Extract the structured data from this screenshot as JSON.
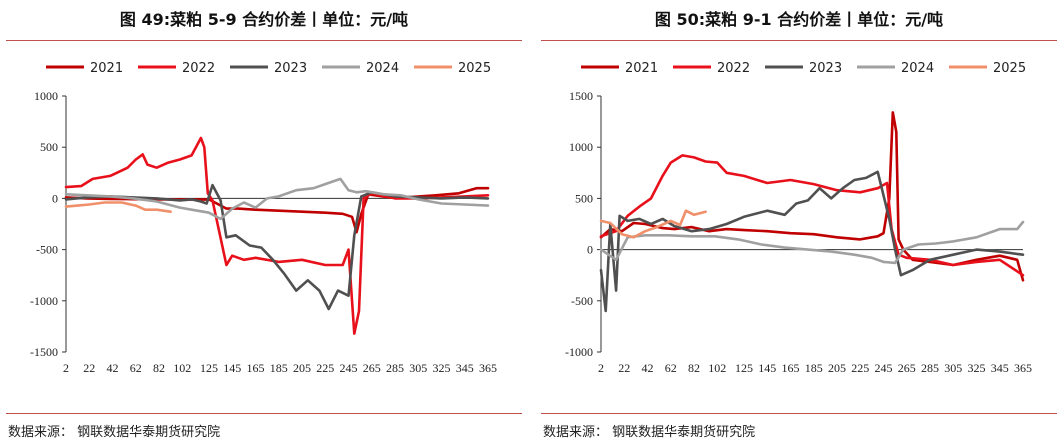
{
  "chart_data": [
    {
      "type": "line",
      "title": "图 49:菜粕 5-9 合约价差丨单位：元/吨",
      "xlabel": "",
      "ylabel": "",
      "xlim": [
        2,
        365
      ],
      "ylim": [
        -1500,
        1000
      ],
      "x_ticks": [
        2,
        22,
        42,
        62,
        82,
        102,
        125,
        145,
        165,
        185,
        205,
        225,
        245,
        265,
        285,
        305,
        325,
        345,
        365
      ],
      "y_ticks": [
        1000,
        500,
        0,
        -500,
        -1000,
        -1500
      ],
      "legend": "top",
      "series": [
        {
          "name": "2021",
          "color": "#c00000",
          "points": [
            [
              2,
              10
            ],
            [
              20,
              0
            ],
            [
              40,
              -5
            ],
            [
              60,
              -8
            ],
            [
              80,
              -10
            ],
            [
              100,
              -10
            ],
            [
              115,
              -12
            ],
            [
              125,
              -10
            ],
            [
              140,
              -100
            ],
            [
              150,
              -100
            ],
            [
              165,
              -110
            ],
            [
              185,
              -120
            ],
            [
              205,
              -130
            ],
            [
              225,
              -140
            ],
            [
              240,
              -150
            ],
            [
              248,
              -180
            ],
            [
              252,
              -330
            ],
            [
              256,
              -150
            ],
            [
              262,
              40
            ],
            [
              280,
              10
            ],
            [
              300,
              15
            ],
            [
              320,
              30
            ],
            [
              340,
              50
            ],
            [
              355,
              100
            ],
            [
              365,
              100
            ]
          ]
        },
        {
          "name": "2022",
          "color": "#e8101a",
          "points": [
            [
              2,
              110
            ],
            [
              15,
              120
            ],
            [
              25,
              190
            ],
            [
              40,
              220
            ],
            [
              55,
              300
            ],
            [
              62,
              380
            ],
            [
              68,
              430
            ],
            [
              72,
              330
            ],
            [
              80,
              300
            ],
            [
              90,
              350
            ],
            [
              100,
              380
            ],
            [
              110,
              420
            ],
            [
              118,
              590
            ],
            [
              121,
              500
            ],
            [
              124,
              50
            ],
            [
              128,
              -20
            ],
            [
              140,
              -650
            ],
            [
              145,
              -560
            ],
            [
              155,
              -600
            ],
            [
              165,
              -580
            ],
            [
              185,
              -620
            ],
            [
              205,
              -600
            ],
            [
              225,
              -650
            ],
            [
              240,
              -650
            ],
            [
              245,
              -500
            ],
            [
              250,
              -1320
            ],
            [
              254,
              -1100
            ],
            [
              258,
              0
            ],
            [
              265,
              50
            ],
            [
              285,
              0
            ],
            [
              305,
              0
            ],
            [
              325,
              10
            ],
            [
              345,
              20
            ],
            [
              365,
              30
            ]
          ]
        },
        {
          "name": "2023",
          "color": "#505050",
          "points": [
            [
              2,
              -10
            ],
            [
              20,
              10
            ],
            [
              40,
              20
            ],
            [
              60,
              10
            ],
            [
              80,
              0
            ],
            [
              100,
              -20
            ],
            [
              110,
              -10
            ],
            [
              118,
              -30
            ],
            [
              123,
              -50
            ],
            [
              128,
              130
            ],
            [
              135,
              -20
            ],
            [
              140,
              -380
            ],
            [
              148,
              -360
            ],
            [
              160,
              -460
            ],
            [
              170,
              -480
            ],
            [
              180,
              -600
            ],
            [
              190,
              -740
            ],
            [
              200,
              -900
            ],
            [
              210,
              -800
            ],
            [
              220,
              -900
            ],
            [
              228,
              -1080
            ],
            [
              236,
              -900
            ],
            [
              245,
              -950
            ],
            [
              250,
              -360
            ],
            [
              256,
              20
            ],
            [
              265,
              60
            ],
            [
              285,
              20
            ],
            [
              305,
              10
            ],
            [
              325,
              0
            ],
            [
              345,
              10
            ],
            [
              365,
              0
            ]
          ]
        },
        {
          "name": "2024",
          "color": "#a0a0a0",
          "points": [
            [
              2,
              40
            ],
            [
              20,
              30
            ],
            [
              40,
              20
            ],
            [
              60,
              0
            ],
            [
              80,
              -30
            ],
            [
              100,
              -90
            ],
            [
              115,
              -120
            ],
            [
              125,
              -140
            ],
            [
              135,
              -200
            ],
            [
              145,
              -100
            ],
            [
              155,
              -40
            ],
            [
              165,
              -90
            ],
            [
              175,
              0
            ],
            [
              185,
              20
            ],
            [
              200,
              80
            ],
            [
              215,
              100
            ],
            [
              225,
              140
            ],
            [
              238,
              190
            ],
            [
              245,
              80
            ],
            [
              252,
              60
            ],
            [
              260,
              70
            ],
            [
              275,
              40
            ],
            [
              290,
              30
            ],
            [
              305,
              -10
            ],
            [
              325,
              -50
            ],
            [
              345,
              -60
            ],
            [
              365,
              -70
            ]
          ]
        },
        {
          "name": "2025",
          "color": "#f0906a",
          "points": [
            [
              2,
              -80
            ],
            [
              12,
              -70
            ],
            [
              22,
              -60
            ],
            [
              35,
              -40
            ],
            [
              50,
              -40
            ],
            [
              62,
              -70
            ],
            [
              70,
              -110
            ],
            [
              80,
              -110
            ],
            [
              92,
              -130
            ]
          ]
        }
      ]
    },
    {
      "type": "line",
      "title": "图 50:菜粕 9-1 合约价差丨单位：元/吨",
      "xlabel": "",
      "ylabel": "",
      "xlim": [
        2,
        365
      ],
      "ylim": [
        -1000,
        1500
      ],
      "x_ticks": [
        2,
        22,
        42,
        62,
        82,
        102,
        125,
        145,
        165,
        185,
        205,
        225,
        245,
        265,
        285,
        305,
        325,
        345,
        365
      ],
      "y_ticks": [
        1500,
        1000,
        500,
        0,
        -500,
        -1000
      ],
      "legend": "top",
      "series": [
        {
          "name": "2021",
          "color": "#c00000",
          "points": [
            [
              2,
              120
            ],
            [
              10,
              200
            ],
            [
              20,
              180
            ],
            [
              30,
              260
            ],
            [
              40,
              250
            ],
            [
              55,
              210
            ],
            [
              65,
              200
            ],
            [
              80,
              220
            ],
            [
              95,
              180
            ],
            [
              110,
              200
            ],
            [
              125,
              190
            ],
            [
              145,
              180
            ],
            [
              165,
              160
            ],
            [
              185,
              150
            ],
            [
              205,
              120
            ],
            [
              225,
              100
            ],
            [
              235,
              120
            ],
            [
              240,
              130
            ],
            [
              245,
              160
            ],
            [
              250,
              500
            ],
            [
              253,
              1340
            ],
            [
              256,
              1150
            ],
            [
              258,
              100
            ],
            [
              262,
              0
            ],
            [
              270,
              -100
            ],
            [
              285,
              -120
            ],
            [
              305,
              -150
            ],
            [
              325,
              -100
            ],
            [
              345,
              -60
            ],
            [
              360,
              -100
            ],
            [
              365,
              -300
            ]
          ]
        },
        {
          "name": "2022",
          "color": "#e8101a",
          "points": [
            [
              2,
              130
            ],
            [
              15,
              180
            ],
            [
              25,
              330
            ],
            [
              35,
              420
            ],
            [
              45,
              500
            ],
            [
              55,
              720
            ],
            [
              62,
              850
            ],
            [
              72,
              920
            ],
            [
              82,
              900
            ],
            [
              92,
              860
            ],
            [
              102,
              850
            ],
            [
              110,
              750
            ],
            [
              125,
              720
            ],
            [
              145,
              650
            ],
            [
              165,
              680
            ],
            [
              185,
              640
            ],
            [
              205,
              580
            ],
            [
              225,
              560
            ],
            [
              240,
              600
            ],
            [
              248,
              650
            ],
            [
              252,
              200
            ],
            [
              258,
              -50
            ],
            [
              265,
              -80
            ],
            [
              285,
              -100
            ],
            [
              305,
              -150
            ],
            [
              325,
              -120
            ],
            [
              345,
              -100
            ],
            [
              365,
              -250
            ]
          ]
        },
        {
          "name": "2023",
          "color": "#505050",
          "points": [
            [
              2,
              -200
            ],
            [
              6,
              -600
            ],
            [
              10,
              250
            ],
            [
              15,
              -400
            ],
            [
              18,
              330
            ],
            [
              25,
              280
            ],
            [
              35,
              300
            ],
            [
              45,
              250
            ],
            [
              55,
              300
            ],
            [
              65,
              230
            ],
            [
              80,
              180
            ],
            [
              95,
              200
            ],
            [
              110,
              250
            ],
            [
              125,
              320
            ],
            [
              145,
              380
            ],
            [
              160,
              340
            ],
            [
              170,
              450
            ],
            [
              180,
              480
            ],
            [
              190,
              600
            ],
            [
              200,
              500
            ],
            [
              210,
              600
            ],
            [
              220,
              680
            ],
            [
              230,
              700
            ],
            [
              240,
              760
            ],
            [
              250,
              300
            ],
            [
              255,
              0
            ],
            [
              260,
              -250
            ],
            [
              270,
              -200
            ],
            [
              285,
              -100
            ],
            [
              305,
              -50
            ],
            [
              325,
              0
            ],
            [
              345,
              -20
            ],
            [
              365,
              -50
            ]
          ]
        },
        {
          "name": "2024",
          "color": "#a0a0a0",
          "points": [
            [
              2,
              0
            ],
            [
              15,
              -100
            ],
            [
              25,
              120
            ],
            [
              40,
              140
            ],
            [
              60,
              140
            ],
            [
              80,
              130
            ],
            [
              100,
              130
            ],
            [
              120,
              100
            ],
            [
              140,
              50
            ],
            [
              160,
              20
            ],
            [
              180,
              0
            ],
            [
              200,
              -20
            ],
            [
              220,
              -50
            ],
            [
              235,
              -80
            ],
            [
              245,
              -120
            ],
            [
              255,
              -130
            ],
            [
              262,
              0
            ],
            [
              275,
              50
            ],
            [
              290,
              60
            ],
            [
              305,
              80
            ],
            [
              325,
              120
            ],
            [
              345,
              200
            ],
            [
              360,
              200
            ],
            [
              365,
              270
            ]
          ]
        },
        {
          "name": "2025",
          "color": "#f0906a",
          "points": [
            [
              2,
              280
            ],
            [
              10,
              260
            ],
            [
              20,
              150
            ],
            [
              30,
              120
            ],
            [
              40,
              180
            ],
            [
              50,
              220
            ],
            [
              62,
              280
            ],
            [
              70,
              240
            ],
            [
              75,
              380
            ],
            [
              82,
              340
            ],
            [
              92,
              370
            ]
          ]
        }
      ]
    }
  ],
  "source_left": "数据来源：  钢联数据华泰期货研究院",
  "source_right": "数据来源：  钢联数据华泰期货研究院"
}
